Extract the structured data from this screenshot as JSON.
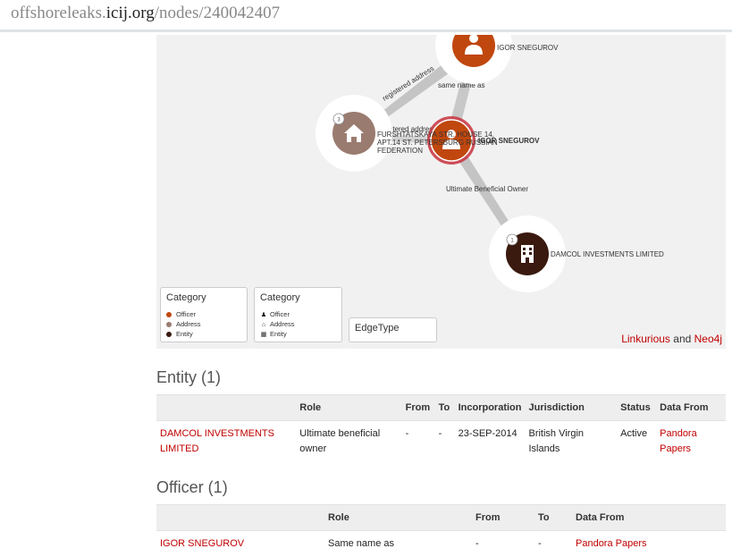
{
  "browser": {
    "url_prefix": "offshoreleaks.",
    "url_host": "icij.org",
    "url_path": "/nodes/240042407"
  },
  "graph": {
    "nodes": {
      "officer_top": {
        "label": "IGOR SNEGUROV",
        "type": "Officer",
        "color": "#c0470e"
      },
      "address": {
        "label_line1": "FURSHTATSKAYA STR. HOUSE 14,",
        "label_line2": "APT.14 ST. PETERSBURG RUSSIAN",
        "label_line3": "FEDERATION",
        "badge": "3",
        "type": "Address",
        "color": "#9a7b70"
      },
      "officer_center": {
        "label": "IGOR SNEGUROV",
        "type": "Officer",
        "color": "#c0470e"
      },
      "entity": {
        "label": "DAMCOL INVESTMENTS LIMITED",
        "badge": "1",
        "type": "Entity",
        "color": "#3a1a0f"
      }
    },
    "edges": {
      "registered_address_1": "registered address",
      "registered_address_2": "registered address",
      "same_name_as": "same name as",
      "ultimate_beneficial_owner": "Ultimate Beneficial Owner"
    },
    "legend_color": {
      "title": "Category",
      "items": [
        {
          "label": "Officer",
          "color": "#c0470e"
        },
        {
          "label": "Address",
          "color": "#9a7b70"
        },
        {
          "label": "Entity",
          "color": "#3a1a0f"
        }
      ]
    },
    "legend_icon": {
      "title": "Category",
      "items": [
        {
          "label": "Officer",
          "icon": "person-icon"
        },
        {
          "label": "Address",
          "icon": "home-icon"
        },
        {
          "label": "Entity",
          "icon": "building-icon"
        }
      ]
    },
    "legend_edge": {
      "title": "EdgeType"
    },
    "credits": {
      "link1": "Linkurious",
      "and": "and",
      "link2": "Neo4j"
    }
  },
  "entity_section": {
    "title": "Entity (1)",
    "headers": [
      "",
      "Role",
      "From",
      "To",
      "Incorporation",
      "Jurisdiction",
      "Status",
      "Data From"
    ],
    "rows": [
      {
        "name_line1": "DAMCOL INVESTMENTS",
        "name_line2": "LIMITED",
        "role_line1": "Ultimate beneficial",
        "role_line2": "owner",
        "from": "-",
        "to": "-",
        "incorporation": "23-SEP-2014",
        "jurisdiction_line1": "British Virgin",
        "jurisdiction_line2": "Islands",
        "status": "Active",
        "data_from_line1": "Pandora",
        "data_from_line2": "Papers"
      }
    ]
  },
  "officer_section": {
    "title": "Officer (1)",
    "headers": [
      "",
      "Role",
      "From",
      "To",
      "Data From"
    ],
    "rows": [
      {
        "name": "IGOR SNEGUROV",
        "role": "Same name as",
        "from": "-",
        "to": "-",
        "data_from": "Pandora Papers"
      }
    ]
  }
}
